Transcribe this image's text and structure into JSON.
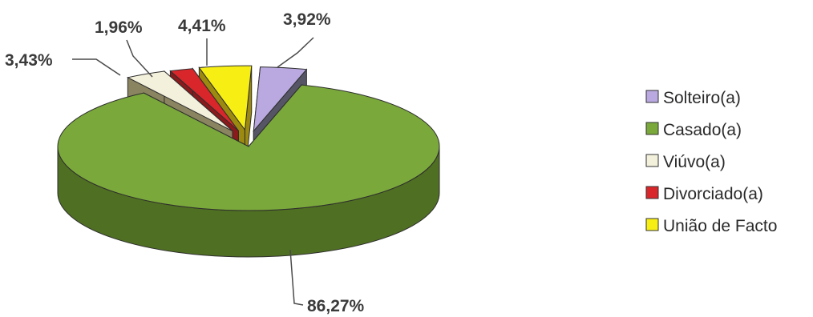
{
  "chart_data": {
    "type": "pie",
    "style": "3d-exploded",
    "categories": [
      "Solteiro(a)",
      "Casado(a)",
      "Viúvo(a)",
      "Divorciado(a)",
      "União de Facto"
    ],
    "values": [
      3.92,
      86.27,
      3.43,
      1.96,
      4.41
    ],
    "value_labels": [
      "3,92%",
      "86,27%",
      "3,43%",
      "1,96%",
      "4,41%"
    ],
    "colors": [
      "#b9a9e0",
      "#7aa83a",
      "#f3f0dc",
      "#d8262b",
      "#f7ef14"
    ],
    "side_colors": [
      "#555566",
      "#4f6f22",
      "#8a8460",
      "#8a1a1c",
      "#9c8a10"
    ],
    "legend_position": "right",
    "title": ""
  }
}
